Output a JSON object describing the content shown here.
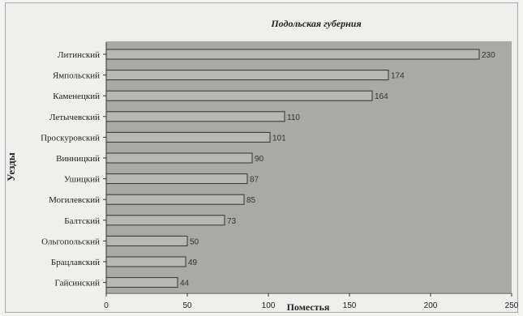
{
  "chart_data": {
    "type": "bar",
    "orientation": "horizontal",
    "title": "Подольская губерния",
    "xlabel": "Поместья",
    "ylabel": "Уезды",
    "categories": [
      "Литинский",
      "Ямпольский",
      "Каменецкий",
      "Летычевский",
      "Проскуровский",
      "Винницкий",
      "Ушицкий",
      "Могилевский",
      "Балтский",
      "Ольгопольский",
      "Брацлавский",
      "Гайсинский"
    ],
    "values": [
      230,
      174,
      164,
      110,
      101,
      90,
      87,
      85,
      73,
      50,
      49,
      44
    ],
    "xlim": [
      0,
      250
    ],
    "xticks": [
      0,
      50,
      100,
      150,
      200,
      250
    ],
    "grid": false,
    "legend": "none",
    "colors": {
      "bar": "#b7b7b4",
      "bar_edge": "#333333",
      "plot_bg": "#a9a9a6"
    }
  }
}
